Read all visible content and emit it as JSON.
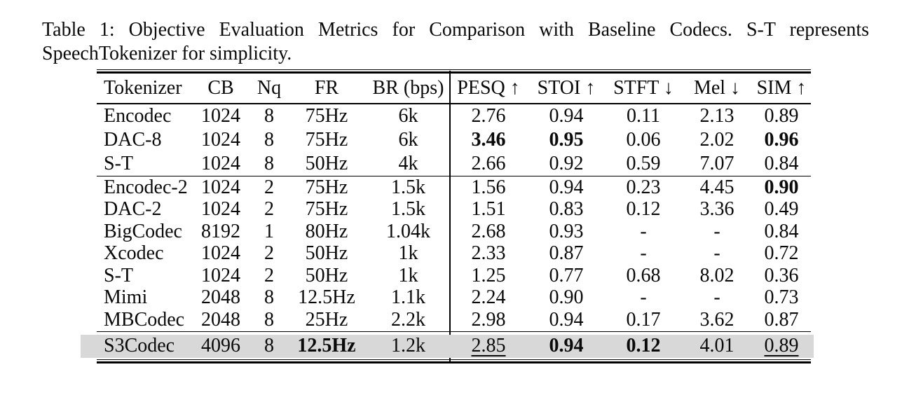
{
  "caption": {
    "line1": "Table 1:  Objective Evaluation Metrics for Comparison with Baseline Codecs.  S-T represents",
    "line2": "SpeechTokenizer for simplicity."
  },
  "table": {
    "highlight_color": "#d8d8d8",
    "text_color": "#0a0a0a",
    "headers": [
      "Tokenizer",
      "CB",
      "Nq",
      "FR",
      "BR (bps)",
      "PESQ ↑",
      "STOI ↑",
      "STFT ↓",
      "Mel ↓",
      "SIM ↑"
    ],
    "groups": [
      {
        "name": "high-bitrate-baselines",
        "highlight": false,
        "rows": [
          {
            "cells": [
              "Encodec",
              "1024",
              "8",
              "75Hz",
              "6k",
              "2.76",
              "0.94",
              "0.11",
              "2.13",
              "0.89"
            ],
            "bold": [],
            "underline": []
          },
          {
            "cells": [
              "DAC-8",
              "1024",
              "8",
              "75Hz",
              "6k",
              "3.46",
              "0.95",
              "0.06",
              "2.02",
              "0.96"
            ],
            "bold": [
              5,
              6,
              9
            ],
            "underline": []
          },
          {
            "cells": [
              "S-T",
              "1024",
              "8",
              "50Hz",
              "4k",
              "2.66",
              "0.92",
              "0.59",
              "7.07",
              "0.84"
            ],
            "bold": [],
            "underline": []
          }
        ]
      },
      {
        "name": "low-bitrate-baselines",
        "highlight": false,
        "rows": [
          {
            "cells": [
              "Encodec-2",
              "1024",
              "2",
              "75Hz",
              "1.5k",
              "1.56",
              "0.94",
              "0.23",
              "4.45",
              "0.90"
            ],
            "bold": [
              9
            ],
            "underline": []
          },
          {
            "cells": [
              "DAC-2",
              "1024",
              "2",
              "75Hz",
              "1.5k",
              "1.51",
              "0.83",
              "0.12",
              "3.36",
              "0.49"
            ],
            "bold": [],
            "underline": []
          },
          {
            "cells": [
              "BigCodec",
              "8192",
              "1",
              "80Hz",
              "1.04k",
              "2.68",
              "0.93",
              "-",
              "-",
              "0.84"
            ],
            "bold": [],
            "underline": []
          },
          {
            "cells": [
              "Xcodec",
              "1024",
              "2",
              "50Hz",
              "1k",
              "2.33",
              "0.87",
              "-",
              "-",
              "0.72"
            ],
            "bold": [],
            "underline": []
          },
          {
            "cells": [
              "S-T",
              "1024",
              "2",
              "50Hz",
              "1k",
              "1.25",
              "0.77",
              "0.68",
              "8.02",
              "0.36"
            ],
            "bold": [],
            "underline": []
          },
          {
            "cells": [
              "Mimi",
              "2048",
              "8",
              "12.5Hz",
              "1.1k",
              "2.24",
              "0.90",
              "-",
              "-",
              "0.73"
            ],
            "bold": [],
            "underline": []
          },
          {
            "cells": [
              "MBCodec",
              "2048",
              "8",
              "25Hz",
              "2.2k",
              "2.98",
              "0.94",
              "0.17",
              "3.62",
              "0.87"
            ],
            "bold": [],
            "underline": []
          }
        ]
      },
      {
        "name": "proposed-s3codec",
        "highlight": true,
        "rows": [
          {
            "cells": [
              "S3Codec",
              "4096",
              "8",
              "12.5Hz",
              "1.2k",
              "2.85",
              "0.94",
              "0.12",
              "4.01",
              "0.89"
            ],
            "bold": [
              3,
              6,
              7
            ],
            "underline": [
              5,
              9
            ]
          }
        ]
      }
    ]
  }
}
